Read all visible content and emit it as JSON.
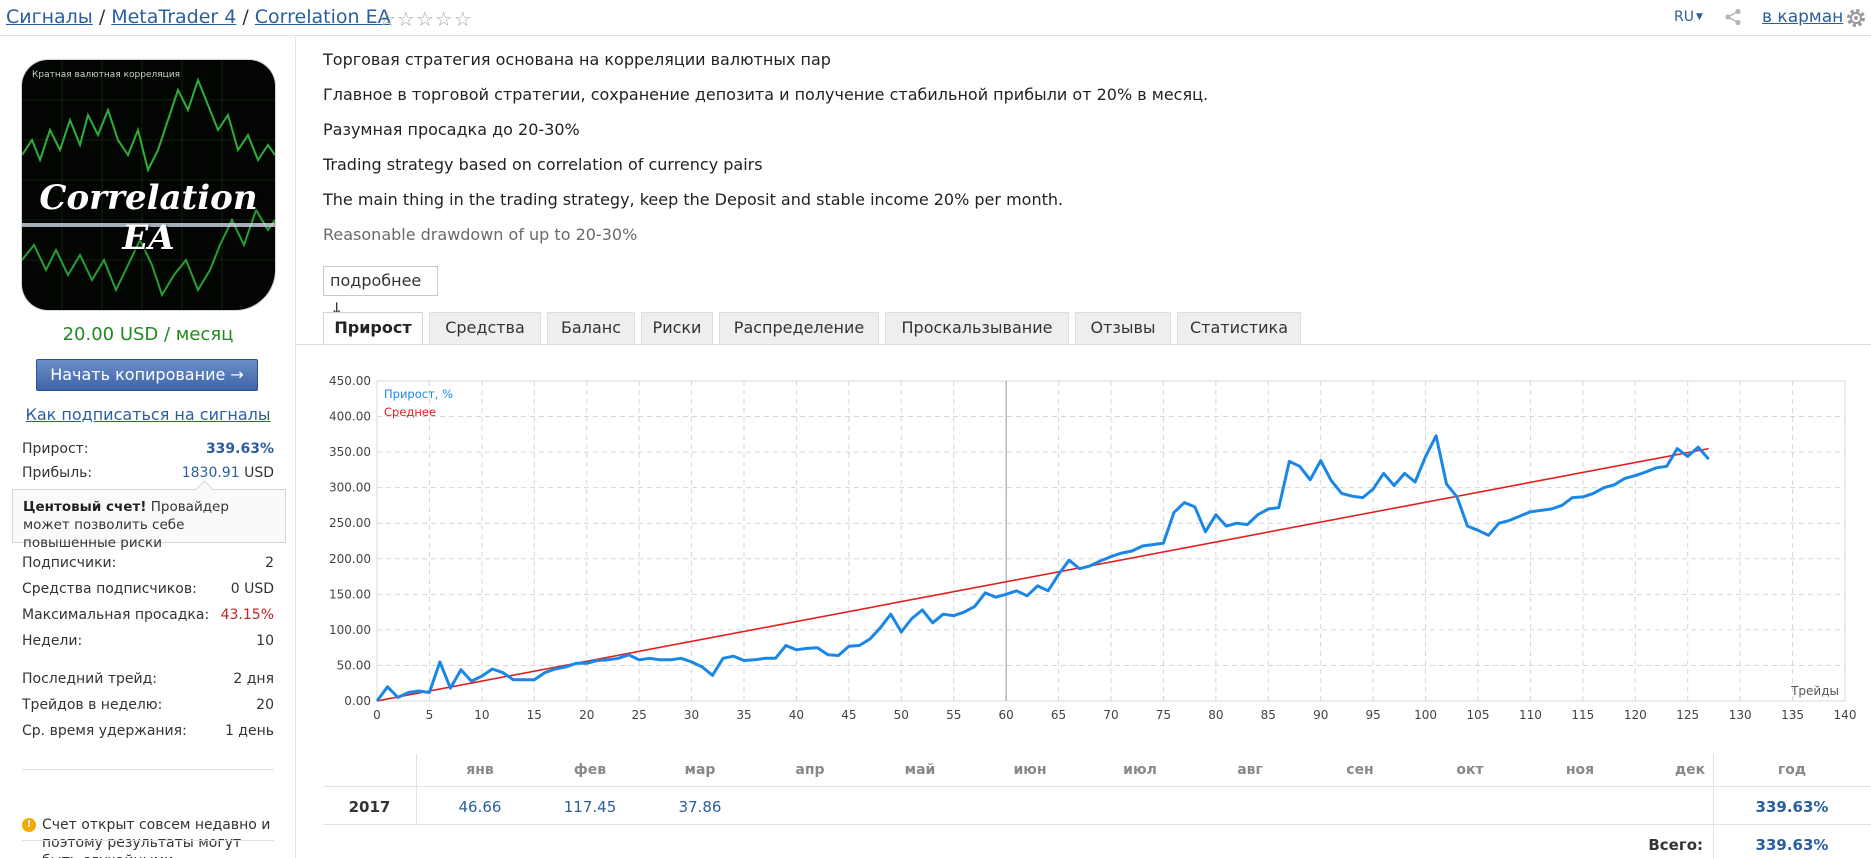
{
  "breadcrumb": {
    "signals": "Сигналы",
    "platform": "MetaTrader 4",
    "name": "Correlation EA",
    "sep": "/"
  },
  "rating": "☆☆☆☆☆",
  "header": {
    "lang": "RU",
    "pocket": "в карман"
  },
  "product": {
    "thumb_caption": "Кратная валютная корреляция",
    "thumb_title": "Correlation EA",
    "price": "20.00 USD / месяц",
    "copy_button": "Начать копирование →",
    "howto_link": "Как подписаться на сигналы"
  },
  "stats": {
    "growth_label": "Прирост:",
    "growth_value": "339.63%",
    "profit_label": "Прибыль:",
    "profit_value": "1830.91",
    "profit_unit": "USD",
    "cent_title": "Центовый счет!",
    "cent_text": " Провайдер может позволить себе повышенные риски",
    "subscribers_label": "Подписчики:",
    "subscribers_value": "2",
    "funds_label": "Средства подписчиков:",
    "funds_value": "0 USD",
    "drawdown_label": "Максимальная просадка:",
    "drawdown_value": "43.15%",
    "weeks_label": "Недели:",
    "weeks_value": "10",
    "last_trade_label": "Последний трейд:",
    "last_trade_value": "2 дня",
    "trades_week_label": "Трейдов в неделю:",
    "trades_week_value": "20",
    "hold_label": "Ср. время удержания:",
    "hold_value": "1 день",
    "warning": "Счет открыт совсем недавно и поэтому результаты могут быть случайными"
  },
  "description": [
    "Торговая стратегия основана на корреляции валютных пар",
    "Главное в торговой стратегии, сохранение депозита и получение стабильной прибыли от 20% в месяц.",
    "Разумная просадка до 20-30%",
    "Trading strategy based on correlation of currency pairs",
    "The main thing in the trading strategy, keep the Deposit and stable income 20% per month.",
    "Reasonable drawdown of up to 20-30%"
  ],
  "more_button": "подробнее ↓",
  "tabs": [
    "Прирост",
    "Средства",
    "Баланс",
    "Риски",
    "Распределение",
    "Проскальзывание",
    "Отзывы",
    "Статистика"
  ],
  "colors": {
    "link": "#2a5f9e",
    "growth_line": "#1a86e8",
    "avg_line": "#e02020",
    "price": "#1f8a1f"
  },
  "chart_data": {
    "type": "line",
    "legend": [
      "Прирост, %",
      "Среднее"
    ],
    "legend_position": "top-left",
    "xlabel": "Трейды",
    "xlim": [
      0,
      140
    ],
    "ylim": [
      0,
      450
    ],
    "x_ticks": [
      0,
      5,
      10,
      15,
      20,
      25,
      30,
      35,
      40,
      45,
      50,
      55,
      60,
      65,
      70,
      75,
      80,
      85,
      90,
      95,
      100,
      105,
      110,
      115,
      120,
      125,
      130,
      135,
      140
    ],
    "y_ticks": [
      "0.00",
      "50.00",
      "100.00",
      "150.00",
      "200.00",
      "250.00",
      "300.00",
      "350.00",
      "400.00",
      "450.00"
    ],
    "marker_x": 60,
    "grid": true,
    "series": [
      {
        "name": "Прирост, %",
        "x": [
          0,
          1,
          2,
          3,
          4,
          5,
          6,
          7,
          8,
          9,
          10,
          11,
          12,
          13,
          14,
          15,
          16,
          17,
          18,
          19,
          20,
          21,
          22,
          23,
          24,
          25,
          26,
          27,
          28,
          29,
          30,
          31,
          32,
          33,
          34,
          35,
          36,
          37,
          38,
          39,
          40,
          41,
          42,
          43,
          44,
          45,
          46,
          47,
          48,
          49,
          50,
          51,
          52,
          53,
          54,
          55,
          56,
          57,
          58,
          59,
          60,
          61,
          62,
          63,
          64,
          65,
          66,
          67,
          68,
          69,
          70,
          71,
          72,
          73,
          74,
          75,
          76,
          77,
          78,
          79,
          80,
          81,
          82,
          83,
          84,
          85,
          86,
          87,
          88,
          89,
          90,
          91,
          92,
          93,
          94,
          95,
          96,
          97,
          98,
          99,
          100,
          101,
          102,
          103,
          104,
          105,
          106,
          107,
          108,
          109,
          110,
          111,
          112,
          113,
          114,
          115,
          116,
          117,
          118,
          119,
          120,
          121,
          122,
          123,
          124,
          125,
          126,
          127
        ],
        "y": [
          0,
          20,
          5,
          12,
          14,
          12,
          55,
          18,
          44,
          28,
          35,
          45,
          40,
          30,
          30,
          30,
          40,
          45,
          48,
          53,
          53,
          57,
          58,
          60,
          65,
          58,
          60,
          58,
          58,
          60,
          55,
          48,
          36,
          60,
          63,
          57,
          58,
          60,
          60,
          78,
          72,
          74,
          75,
          65,
          64,
          77,
          78,
          87,
          103,
          122,
          97,
          116,
          128,
          110,
          122,
          120,
          125,
          133,
          152,
          146,
          150,
          155,
          148,
          162,
          155,
          178,
          198,
          186,
          190,
          197,
          203,
          208,
          211,
          218,
          220,
          222,
          265,
          279,
          273,
          238,
          262,
          246,
          250,
          248,
          262,
          270,
          272,
          337,
          330,
          311,
          338,
          310,
          292,
          288,
          286,
          298,
          320,
          303,
          320,
          308,
          344,
          373,
          305,
          287,
          246,
          240,
          233,
          250,
          254,
          260,
          266,
          268,
          270,
          275,
          286,
          287,
          292,
          300,
          304,
          313,
          317,
          322,
          328,
          330,
          355,
          344,
          357,
          340
        ]
      },
      {
        "name": "Среднее",
        "x": [
          0,
          127
        ],
        "y": [
          0,
          355
        ]
      }
    ]
  },
  "monthly": {
    "months": [
      "янв",
      "фев",
      "мар",
      "апр",
      "май",
      "июн",
      "июл",
      "авг",
      "сен",
      "окт",
      "ноя",
      "дек"
    ],
    "year_label": "год",
    "year": "2017",
    "values": [
      "46.66",
      "117.45",
      "37.86",
      "",
      "",
      "",
      "",
      "",
      "",
      "",
      "",
      ""
    ],
    "year_total": "339.63%",
    "total_label": "Всего:",
    "total_value": "339.63%"
  }
}
